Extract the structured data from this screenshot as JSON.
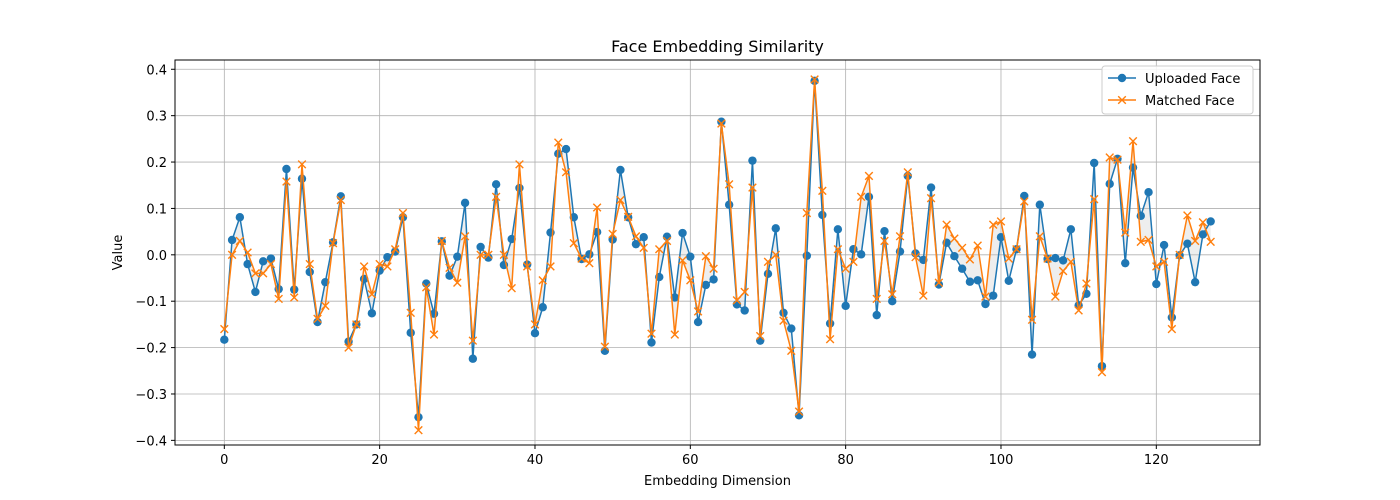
{
  "chart_data": {
    "type": "line",
    "title": "Face Embedding Similarity",
    "xlabel": "Embedding Dimension",
    "ylabel": "Value",
    "xlim": [
      -6.35,
      133.35
    ],
    "ylim": [
      -0.41,
      0.42
    ],
    "xticks": [
      0,
      20,
      40,
      60,
      80,
      100,
      120
    ],
    "yticks": [
      -0.4,
      -0.3,
      -0.2,
      -0.1,
      0.0,
      0.1,
      0.2,
      0.3,
      0.4
    ],
    "xtick_labels": [
      "0",
      "20",
      "40",
      "60",
      "80",
      "100",
      "120"
    ],
    "ytick_labels": [
      "−0.4",
      "−0.3",
      "−0.2",
      "−0.1",
      "0.0",
      "0.1",
      "0.2",
      "0.3",
      "0.4"
    ],
    "grid": true,
    "legend_position": "top-right",
    "fill_between": true,
    "fill_color": "#c8c8c8",
    "series": [
      {
        "name": "Uploaded Face",
        "color": "#1f77b4",
        "marker": "circle",
        "values": [
          -0.183,
          0.032,
          0.081,
          -0.02,
          -0.08,
          -0.014,
          -0.008,
          -0.074,
          0.185,
          -0.075,
          0.164,
          -0.037,
          -0.145,
          -0.059,
          0.027,
          0.126,
          -0.187,
          -0.15,
          -0.052,
          -0.126,
          -0.034,
          -0.005,
          0.007,
          0.081,
          -0.168,
          -0.35,
          -0.062,
          -0.127,
          0.029,
          -0.045,
          -0.004,
          0.112,
          -0.224,
          0.017,
          -0.006,
          0.152,
          -0.022,
          0.034,
          0.144,
          -0.021,
          -0.169,
          -0.113,
          0.048,
          0.218,
          0.228,
          0.081,
          -0.009,
          0.001,
          0.049,
          -0.207,
          0.033,
          0.183,
          0.081,
          0.023,
          0.038,
          -0.189,
          -0.048,
          0.039,
          -0.092,
          0.047,
          -0.004,
          -0.145,
          -0.065,
          -0.053,
          0.287,
          0.108,
          -0.107,
          -0.12,
          0.203,
          -0.185,
          -0.041,
          0.057,
          -0.125,
          -0.159,
          -0.346,
          -0.002,
          0.375,
          0.086,
          -0.148,
          0.055,
          -0.11,
          0.012,
          0.001,
          0.125,
          -0.13,
          0.051,
          -0.1,
          0.007,
          0.17,
          0.003,
          -0.011,
          0.145,
          -0.064,
          0.026,
          -0.003,
          -0.03,
          -0.058,
          -0.055,
          -0.106,
          -0.088,
          0.038,
          -0.056,
          0.012,
          0.127,
          -0.215,
          0.108,
          -0.009,
          -0.007,
          -0.012,
          0.055,
          -0.109,
          -0.084,
          0.198,
          -0.24,
          0.153,
          0.207,
          -0.018,
          0.188,
          0.084,
          0.135,
          -0.063,
          0.021,
          -0.135,
          -0.001,
          0.024,
          -0.059,
          0.044,
          0.072
        ]
      },
      {
        "name": "Matched Face",
        "color": "#ff7f0e",
        "marker": "x",
        "values": [
          -0.16,
          0.0,
          0.03,
          0.005,
          -0.04,
          -0.04,
          -0.02,
          -0.095,
          0.158,
          -0.092,
          0.195,
          -0.02,
          -0.138,
          -0.11,
          0.025,
          0.118,
          -0.2,
          -0.15,
          -0.025,
          -0.085,
          -0.02,
          -0.025,
          0.012,
          0.09,
          -0.125,
          -0.378,
          -0.07,
          -0.172,
          0.03,
          -0.028,
          -0.06,
          0.04,
          -0.185,
          0.0,
          0.0,
          0.125,
          0.0,
          -0.072,
          0.195,
          -0.025,
          -0.15,
          -0.055,
          -0.025,
          0.242,
          0.178,
          0.025,
          -0.008,
          -0.018,
          0.102,
          -0.198,
          0.045,
          0.118,
          0.082,
          0.04,
          0.015,
          -0.17,
          0.012,
          0.03,
          -0.172,
          -0.012,
          -0.055,
          -0.122,
          -0.003,
          -0.03,
          0.283,
          0.152,
          -0.098,
          -0.08,
          0.145,
          -0.175,
          -0.015,
          0.0,
          -0.142,
          -0.207,
          -0.338,
          0.09,
          0.378,
          0.138,
          -0.182,
          0.012,
          -0.03,
          -0.015,
          0.125,
          0.17,
          -0.095,
          0.03,
          -0.085,
          0.04,
          0.178,
          -0.005,
          -0.088,
          0.122,
          -0.06,
          0.065,
          0.035,
          0.015,
          -0.01,
          0.02,
          -0.09,
          0.065,
          0.072,
          -0.008,
          0.012,
          0.115,
          -0.14,
          0.04,
          -0.008,
          -0.09,
          -0.035,
          -0.015,
          -0.12,
          -0.062,
          0.12,
          -0.253,
          0.21,
          0.205,
          0.048,
          0.245,
          0.028,
          0.032,
          -0.025,
          -0.015,
          -0.16,
          0.0,
          0.085,
          0.03,
          0.07,
          0.028
        ]
      }
    ]
  }
}
